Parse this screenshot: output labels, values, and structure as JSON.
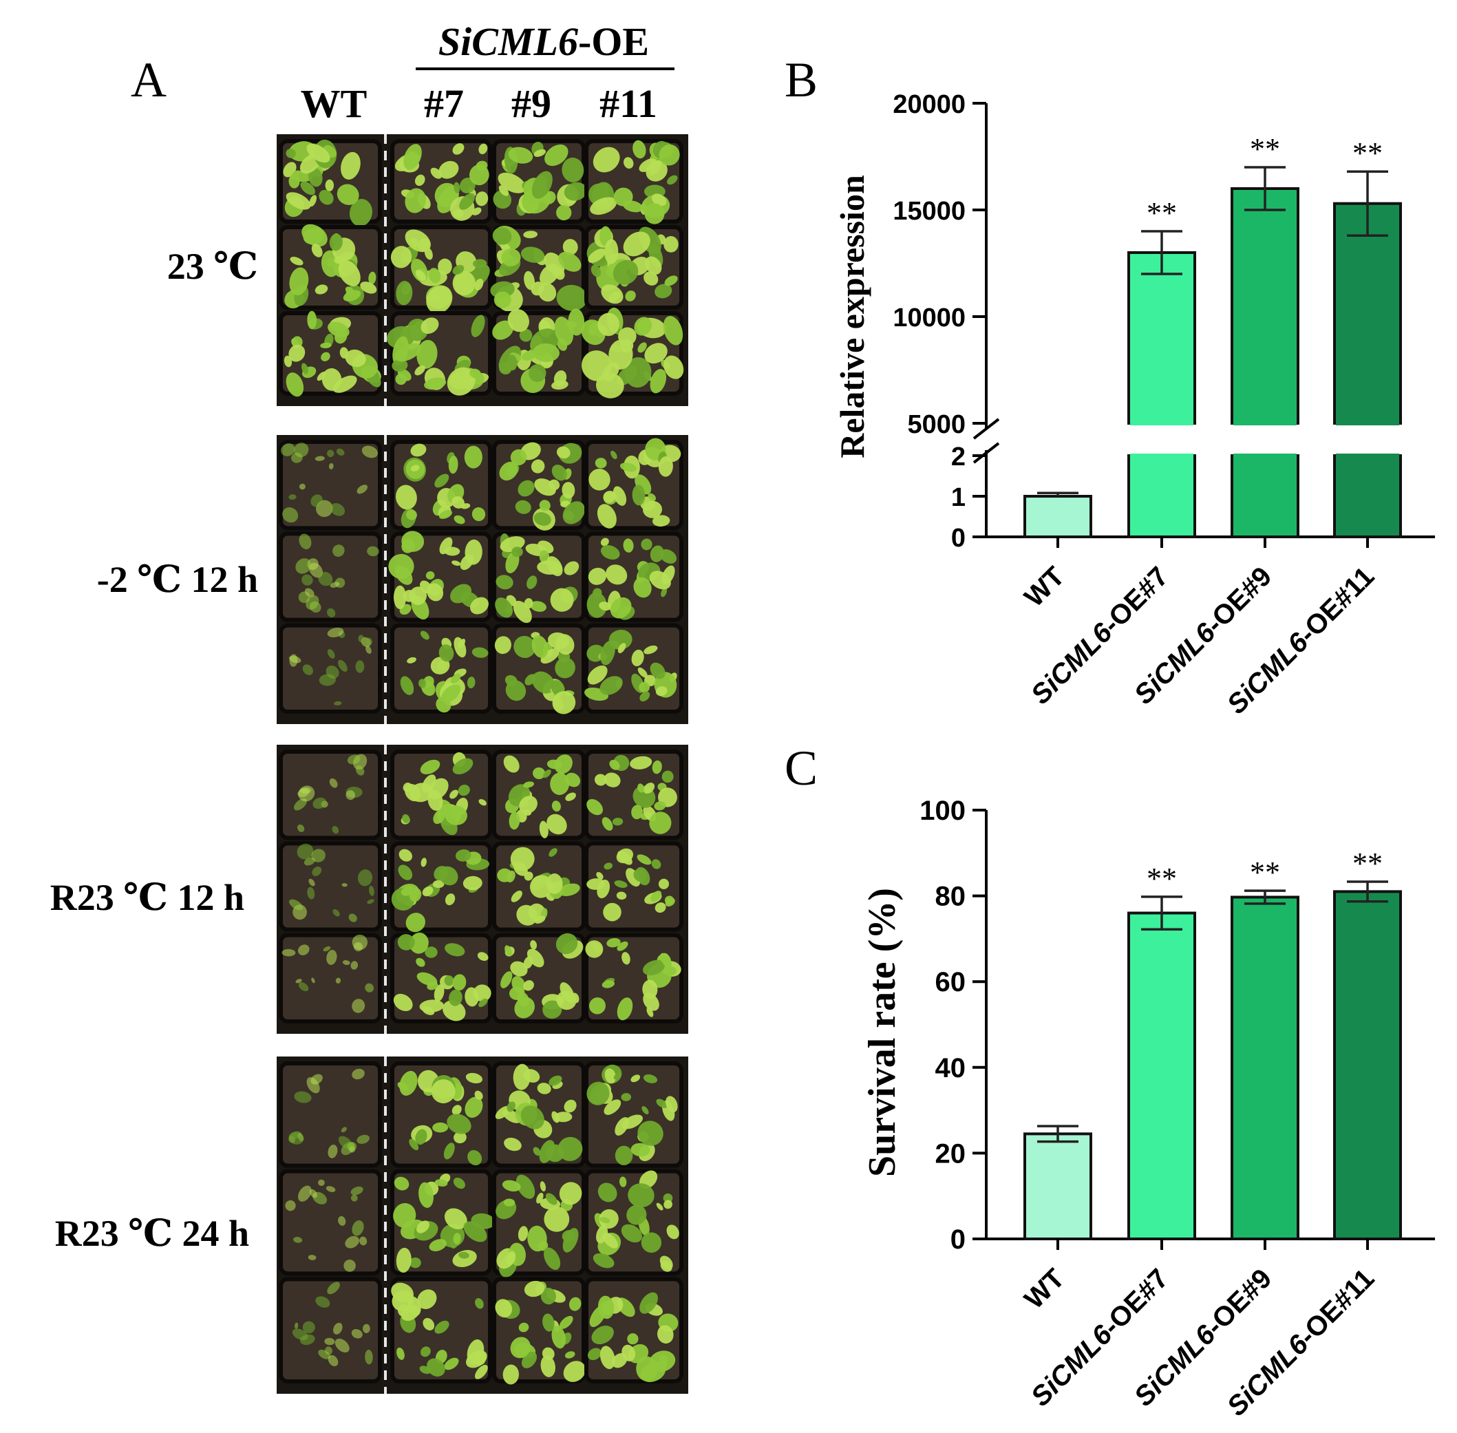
{
  "panel_a": {
    "label": "A",
    "group_header": {
      "italic": "SiCML6",
      "suffix": "-OE"
    },
    "columns": [
      "WT",
      "#7",
      "#9",
      "#11"
    ],
    "rows": [
      "23 ℃",
      "-2 ℃ 12 h",
      "R23 ℃ 12 h",
      "R23 ℃ 24 h"
    ]
  },
  "chart_data": [
    {
      "type": "bar",
      "label": "B",
      "categories": [
        {
          "italic": "",
          "rest": "WT"
        },
        {
          "italic": "SiCML6",
          "rest": "-OE#7"
        },
        {
          "italic": "SiCML6",
          "rest": "-OE#9"
        },
        {
          "italic": "SiCML6",
          "rest": "-OE#11"
        }
      ],
      "values": [
        1.0,
        13000,
        16000,
        15300
      ],
      "errors": [
        0.08,
        1000,
        1000,
        1500
      ],
      "significance": [
        "",
        "**",
        "**",
        "**"
      ],
      "ylabel": "Relative expression",
      "broken_axis": {
        "lower": {
          "range": [
            0,
            2
          ],
          "ticks": [
            "0",
            "1",
            "2"
          ]
        },
        "upper": {
          "range": [
            5000,
            20000
          ],
          "ticks": [
            "5000",
            "10000",
            "15000",
            "20000"
          ]
        }
      },
      "colors": [
        "#a6f5d3",
        "#3cf09c",
        "#1bb766",
        "#168a4e"
      ]
    },
    {
      "type": "bar",
      "label": "C",
      "categories": [
        {
          "italic": "",
          "rest": "WT"
        },
        {
          "italic": "SiCML6",
          "rest": "-OE#7"
        },
        {
          "italic": "SiCML6",
          "rest": "-OE#9"
        },
        {
          "italic": "SiCML6",
          "rest": "-OE#11"
        }
      ],
      "values": [
        24.5,
        76,
        79.7,
        81
      ],
      "errors": [
        1.8,
        3.8,
        1.5,
        2.3
      ],
      "significance": [
        "",
        "**",
        "**",
        "**"
      ],
      "ylabel": "Survival rate (%)",
      "ylim": [
        0,
        100
      ],
      "ticks": [
        "0",
        "20",
        "40",
        "60",
        "80",
        "100"
      ],
      "colors": [
        "#a6f5d3",
        "#3cf09c",
        "#1bb766",
        "#168a4e"
      ]
    }
  ]
}
